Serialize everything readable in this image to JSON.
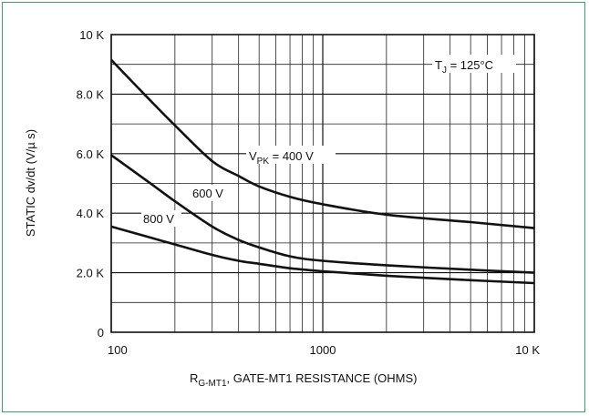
{
  "chart_data": {
    "type": "line",
    "xscale": "log",
    "x_range": [
      100,
      10000
    ],
    "y_range": [
      0,
      10000
    ],
    "grid": true,
    "x_ticks": [
      {
        "v": 100,
        "label": "100"
      },
      {
        "v": 1000,
        "label": "1000"
      },
      {
        "v": 10000,
        "label": "10 K"
      }
    ],
    "y_ticks": [
      {
        "v": 0,
        "label": "0"
      },
      {
        "v": 2000,
        "label": "2.0 K"
      },
      {
        "v": 4000,
        "label": "4.0 K"
      },
      {
        "v": 6000,
        "label": "6.0 K"
      },
      {
        "v": 8000,
        "label": "8.0 K"
      },
      {
        "v": 10000,
        "label": "10 K"
      }
    ],
    "xlabel": "RG-MT1, GATE-MT1 RESISTANCE (OHMS)",
    "ylabel": "STATIC dv/dt (V/µs)",
    "annotation": "TJ = 125°C",
    "series": [
      {
        "name": "VPK = 400 V",
        "x": [
          100,
          150,
          200,
          300,
          400,
          500,
          700,
          1000,
          2000,
          5000,
          10000
        ],
        "y": [
          9150,
          7850,
          6950,
          5750,
          5250,
          4900,
          4550,
          4300,
          3950,
          3700,
          3500
        ]
      },
      {
        "name": "600 V",
        "x": [
          100,
          150,
          200,
          300,
          400,
          500,
          700,
          1000,
          2000,
          5000,
          10000
        ],
        "y": [
          5950,
          5050,
          4400,
          3550,
          3100,
          2850,
          2550,
          2400,
          2250,
          2100,
          2000
        ]
      },
      {
        "name": "800 V",
        "x": [
          100,
          150,
          200,
          300,
          400,
          500,
          700,
          1000,
          2000,
          5000,
          10000
        ],
        "y": [
          3550,
          3200,
          2950,
          2600,
          2400,
          2300,
          2150,
          2050,
          1900,
          1750,
          1650
        ]
      }
    ]
  },
  "labels": {
    "annotation_main": "T",
    "annotation_sub": "J",
    "annotation_rest": " = 125°C",
    "s400_main": "V",
    "s400_sub": "PK",
    "s400_rest": " = 400 V",
    "s600": "600 V",
    "s800": "800 V",
    "xlabel_r": "R",
    "xlabel_sub": "G-MT1",
    "xlabel_rest": ", GATE-MT1 RESISTANCE (OHMS)",
    "ylabel": "STATIC dv/dt (V/µ s)"
  }
}
